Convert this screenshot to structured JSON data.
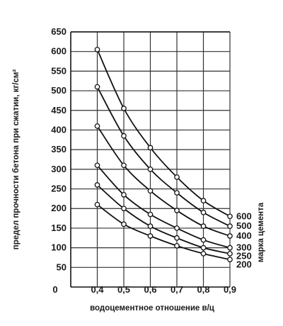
{
  "chart_data": {
    "type": "line",
    "title": "",
    "xlabel": "водоцементное отношение в/ц",
    "ylabel": "предел прочности бетона при сжатии, кг/см²",
    "legend_title": "марка цемента",
    "xlim": [
      0.3,
      0.9
    ],
    "ylim": [
      0,
      650
    ],
    "grid": true,
    "x": [
      0.4,
      0.5,
      0.6,
      0.7,
      0.8,
      0.9
    ],
    "x_tick_labels": [
      "0,4",
      "0,5",
      "0,6",
      "0,7",
      "0,8",
      "0,9"
    ],
    "x_zero_label": "0",
    "y_tick_labels": [
      "50",
      "100",
      "150",
      "200",
      "250",
      "300",
      "350",
      "400",
      "450",
      "500",
      "550",
      "600",
      "650"
    ],
    "series": [
      {
        "name": "600",
        "values": [
          605,
          455,
          355,
          280,
          220,
          180
        ]
      },
      {
        "name": "500",
        "values": [
          510,
          385,
          300,
          240,
          190,
          155
        ]
      },
      {
        "name": "400",
        "values": [
          410,
          310,
          245,
          195,
          155,
          130
        ]
      },
      {
        "name": "300",
        "values": [
          310,
          235,
          185,
          150,
          120,
          100
        ]
      },
      {
        "name": "250",
        "values": [
          260,
          200,
          155,
          125,
          100,
          85
        ]
      },
      {
        "name": "200",
        "values": [
          210,
          160,
          130,
          105,
          85,
          70
        ]
      }
    ]
  }
}
